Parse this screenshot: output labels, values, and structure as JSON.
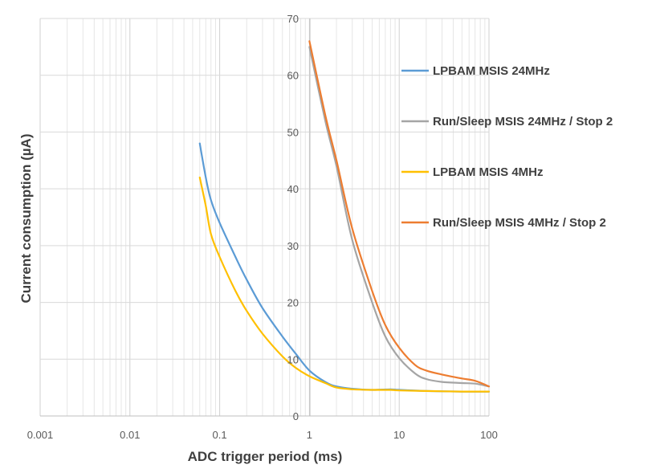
{
  "chart_data": {
    "type": "line",
    "x_scale": "log",
    "xlim": [
      0.001,
      100
    ],
    "ylim": [
      0,
      70
    ],
    "xlabel": "ADC trigger period (ms)",
    "ylabel": "Current consumption (µA)",
    "x_ticks": [
      "0.001",
      "0.01",
      "0.1",
      "1",
      "10",
      "100"
    ],
    "y_ticks": [
      "0",
      "10",
      "20",
      "30",
      "40",
      "50",
      "60",
      "70"
    ],
    "grid": true,
    "legend_position": "right",
    "series": [
      {
        "name": "LPBAM MSIS 24MHz",
        "color": "#5B9BD5",
        "points": [
          [
            0.06,
            48
          ],
          [
            0.07,
            42
          ],
          [
            0.08,
            38
          ],
          [
            0.1,
            34
          ],
          [
            0.15,
            28
          ],
          [
            0.2,
            24
          ],
          [
            0.3,
            19
          ],
          [
            0.5,
            14
          ],
          [
            0.7,
            11
          ],
          [
            1,
            8
          ],
          [
            1.5,
            6
          ],
          [
            2,
            5.2
          ],
          [
            3,
            4.8
          ],
          [
            5,
            4.6
          ],
          [
            8,
            4.7
          ],
          [
            10,
            4.6
          ],
          [
            20,
            4.4
          ],
          [
            50,
            4.3
          ],
          [
            100,
            4.3
          ]
        ]
      },
      {
        "name": "Run/Sleep MSIS 24MHz / Stop 2",
        "color": "#A5A5A5",
        "points": [
          [
            1,
            65
          ],
          [
            1.5,
            52
          ],
          [
            2,
            44
          ],
          [
            3,
            31
          ],
          [
            5,
            20
          ],
          [
            7,
            14
          ],
          [
            10,
            10.2
          ],
          [
            15,
            7.5
          ],
          [
            20,
            6.5
          ],
          [
            30,
            6
          ],
          [
            50,
            5.8
          ],
          [
            70,
            5.7
          ],
          [
            100,
            5.2
          ]
        ]
      },
      {
        "name": "LPBAM MSIS 4MHz",
        "color": "#FFC000",
        "points": [
          [
            0.06,
            42
          ],
          [
            0.07,
            37
          ],
          [
            0.08,
            32
          ],
          [
            0.1,
            28
          ],
          [
            0.15,
            22
          ],
          [
            0.2,
            18.5
          ],
          [
            0.3,
            14.5
          ],
          [
            0.5,
            10.5
          ],
          [
            0.7,
            8.5
          ],
          [
            1,
            7
          ],
          [
            1.5,
            5.8
          ],
          [
            2,
            5
          ],
          [
            3,
            4.7
          ],
          [
            5,
            4.6
          ],
          [
            8,
            4.6
          ],
          [
            10,
            4.5
          ],
          [
            20,
            4.4
          ],
          [
            50,
            4.3
          ],
          [
            100,
            4.3
          ]
        ]
      },
      {
        "name": "Run/Sleep MSIS 4MHz / Stop 2",
        "color": "#ED7D31",
        "points": [
          [
            1,
            66
          ],
          [
            1.5,
            53
          ],
          [
            2,
            45
          ],
          [
            3,
            33
          ],
          [
            5,
            22
          ],
          [
            7,
            16
          ],
          [
            10,
            12
          ],
          [
            15,
            9
          ],
          [
            20,
            8
          ],
          [
            30,
            7.3
          ],
          [
            50,
            6.6
          ],
          [
            70,
            6.2
          ],
          [
            100,
            5.2
          ]
        ]
      }
    ]
  }
}
